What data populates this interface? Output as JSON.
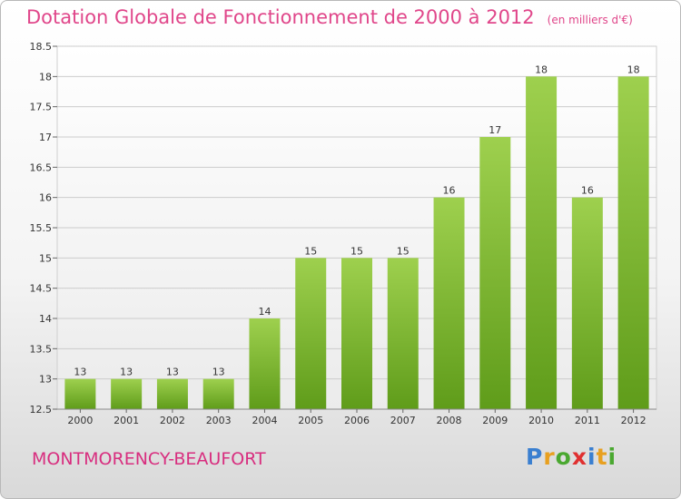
{
  "title": "Dotation Globale de Fonctionnement de 2000 à 2012",
  "unit_note": "(en milliers d'€)",
  "commune": "MONTMORENCY-BEAUFORT",
  "logo": {
    "letters": [
      "P",
      "r",
      "o",
      "x",
      "i",
      "t",
      "i"
    ],
    "colors": [
      "#3a7fd0",
      "#e8a020",
      "#4aa830",
      "#e03030",
      "#3a7fd0",
      "#e8a020",
      "#4aa830"
    ]
  },
  "colors": {
    "bar_top": "#9ed04e",
    "bar_bottom": "#5f9c1a",
    "grid": "#cccccc",
    "title": "#e0468a"
  },
  "chart_data": {
    "type": "bar",
    "categories": [
      "2000",
      "2001",
      "2002",
      "2003",
      "2004",
      "2005",
      "2006",
      "2007",
      "2008",
      "2009",
      "2010",
      "2011",
      "2012"
    ],
    "values": [
      13,
      13,
      13,
      13,
      14,
      15,
      15,
      15,
      16,
      17,
      18,
      16,
      18
    ],
    "data_labels": [
      "13",
      "13",
      "13",
      "13",
      "14",
      "15",
      "15",
      "15",
      "16",
      "17",
      "18",
      "16",
      "18"
    ],
    "ylim": [
      12.5,
      18.5
    ],
    "yticks": [
      12.5,
      13,
      13.5,
      14,
      14.5,
      15,
      15.5,
      16,
      16.5,
      17,
      17.5,
      18,
      18.5
    ],
    "ytick_labels": [
      "12.5",
      "13",
      "13.5",
      "14",
      "14.5",
      "15",
      "15.5",
      "16",
      "16.5",
      "17",
      "17.5",
      "18",
      "18.5"
    ],
    "grid": true,
    "xlabel": "",
    "ylabel": ""
  }
}
